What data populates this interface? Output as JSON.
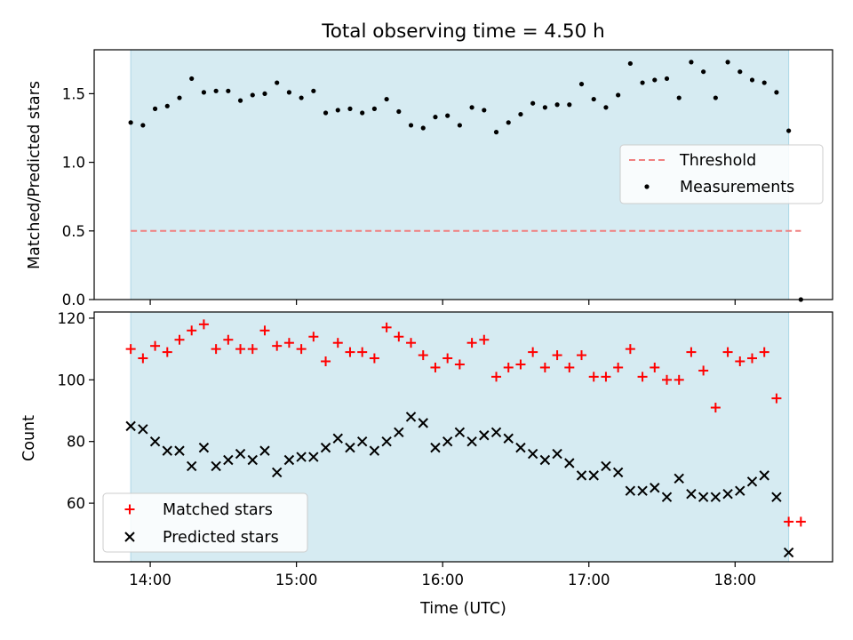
{
  "chart_data": [
    {
      "type": "scatter",
      "title": "Total observing time = 4.50 h",
      "ylabel": "Matched/Predicted stars",
      "xlabel": "",
      "xlim": [
        "13:37",
        "18:40"
      ],
      "ylim": [
        0,
        1.82
      ],
      "y_ticks": [
        0,
        0.5,
        1.0,
        1.5
      ],
      "y_tick_labels": [
        "0.0",
        "0.5",
        "1.0",
        "1.5"
      ],
      "x_ticks": [
        "14:00",
        "15:00",
        "16:00",
        "17:00",
        "18:00"
      ],
      "x_tick_labels_visible": false,
      "shaded_span": [
        "13:52",
        "18:22"
      ],
      "shade_color": "#add8e6",
      "grid": false,
      "legend_position": "center-right",
      "series": [
        {
          "name": "Threshold",
          "style": "dashed-line",
          "color": "#f08080",
          "x": [
            "13:52",
            "18:27"
          ],
          "y": [
            0.5,
            0.5
          ]
        },
        {
          "name": "Measurements",
          "style": "dots",
          "color": "#000000",
          "x": [
            "13:52",
            "13:57",
            "14:02",
            "14:07",
            "14:12",
            "14:17",
            "14:22",
            "14:27",
            "14:32",
            "14:37",
            "14:42",
            "14:47",
            "14:52",
            "14:57",
            "15:02",
            "15:07",
            "15:12",
            "15:17",
            "15:22",
            "15:27",
            "15:32",
            "15:37",
            "15:42",
            "15:47",
            "15:52",
            "15:57",
            "16:02",
            "16:07",
            "16:12",
            "16:17",
            "16:22",
            "16:27",
            "16:32",
            "16:37",
            "16:42",
            "16:47",
            "16:52",
            "16:57",
            "17:02",
            "17:07",
            "17:12",
            "17:17",
            "17:22",
            "17:27",
            "17:32",
            "17:37",
            "17:42",
            "17:47",
            "17:52",
            "17:57",
            "18:02",
            "18:07",
            "18:12",
            "18:17",
            "18:22",
            "18:27"
          ],
          "y": [
            1.29,
            1.27,
            1.39,
            1.41,
            1.47,
            1.61,
            1.51,
            1.52,
            1.52,
            1.45,
            1.49,
            1.5,
            1.58,
            1.51,
            1.47,
            1.52,
            1.36,
            1.38,
            1.39,
            1.36,
            1.39,
            1.46,
            1.37,
            1.27,
            1.25,
            1.33,
            1.34,
            1.27,
            1.4,
            1.38,
            1.22,
            1.29,
            1.35,
            1.43,
            1.4,
            1.42,
            1.42,
            1.57,
            1.46,
            1.4,
            1.49,
            1.72,
            1.58,
            1.6,
            1.61,
            1.47,
            1.73,
            1.66,
            1.47,
            1.73,
            1.66,
            1.6,
            1.58,
            1.51,
            1.23,
            0.0
          ]
        }
      ]
    },
    {
      "type": "scatter",
      "title": "",
      "ylabel": "Count",
      "xlabel": "Time (UTC)",
      "xlim": [
        "13:37",
        "18:40"
      ],
      "ylim": [
        41,
        122
      ],
      "y_ticks": [
        60,
        80,
        100,
        120
      ],
      "x_ticks": [
        "14:00",
        "15:00",
        "16:00",
        "17:00",
        "18:00"
      ],
      "shaded_span": [
        "13:52",
        "18:22"
      ],
      "shade_color": "#add8e6",
      "grid": false,
      "legend_position": "bottom-left",
      "series": [
        {
          "name": "Matched stars",
          "marker": "plus",
          "color": "#ff0000",
          "x": [
            "13:52",
            "13:57",
            "14:02",
            "14:07",
            "14:12",
            "14:17",
            "14:22",
            "14:27",
            "14:32",
            "14:37",
            "14:42",
            "14:47",
            "14:52",
            "14:57",
            "15:02",
            "15:07",
            "15:12",
            "15:17",
            "15:22",
            "15:27",
            "15:32",
            "15:37",
            "15:42",
            "15:47",
            "15:52",
            "15:57",
            "16:02",
            "16:07",
            "16:12",
            "16:17",
            "16:22",
            "16:27",
            "16:32",
            "16:37",
            "16:42",
            "16:47",
            "16:52",
            "16:57",
            "17:02",
            "17:07",
            "17:12",
            "17:17",
            "17:22",
            "17:27",
            "17:32",
            "17:37",
            "17:42",
            "17:47",
            "17:52",
            "17:57",
            "18:02",
            "18:07",
            "18:12",
            "18:17",
            "18:22",
            "18:27"
          ],
          "y": [
            110,
            107,
            111,
            109,
            113,
            116,
            118,
            110,
            113,
            110,
            110,
            116,
            111,
            112,
            110,
            114,
            106,
            112,
            109,
            109,
            107,
            117,
            114,
            112,
            108,
            104,
            107,
            105,
            112,
            113,
            101,
            104,
            105,
            109,
            104,
            108,
            104,
            108,
            101,
            101,
            104,
            110,
            101,
            104,
            100,
            100,
            109,
            103,
            91,
            109,
            106,
            107,
            109,
            94,
            54,
            54
          ]
        },
        {
          "name": "Predicted stars",
          "marker": "x",
          "color": "#000000",
          "x": [
            "13:52",
            "13:57",
            "14:02",
            "14:07",
            "14:12",
            "14:17",
            "14:22",
            "14:27",
            "14:32",
            "14:37",
            "14:42",
            "14:47",
            "14:52",
            "14:57",
            "15:02",
            "15:07",
            "15:12",
            "15:17",
            "15:22",
            "15:27",
            "15:32",
            "15:37",
            "15:42",
            "15:47",
            "15:52",
            "15:57",
            "16:02",
            "16:07",
            "16:12",
            "16:17",
            "16:22",
            "16:27",
            "16:32",
            "16:37",
            "16:42",
            "16:47",
            "16:52",
            "16:57",
            "17:02",
            "17:07",
            "17:12",
            "17:17",
            "17:22",
            "17:27",
            "17:32",
            "17:37",
            "17:42",
            "17:47",
            "17:52",
            "17:57",
            "18:02",
            "18:07",
            "18:12",
            "18:17",
            "18:22",
            "18:27"
          ],
          "y": [
            85,
            84,
            80,
            77,
            77,
            72,
            78,
            72,
            74,
            76,
            74,
            77,
            70,
            74,
            75,
            75,
            78,
            81,
            78,
            80,
            77,
            80,
            83,
            88,
            86,
            78,
            80,
            83,
            80,
            82,
            83,
            81,
            78,
            76,
            74,
            76,
            73,
            69,
            69,
            72,
            70,
            64,
            64,
            65,
            62,
            68,
            63,
            62,
            62,
            63,
            64,
            67,
            69,
            62,
            44,
            null
          ]
        }
      ]
    }
  ]
}
